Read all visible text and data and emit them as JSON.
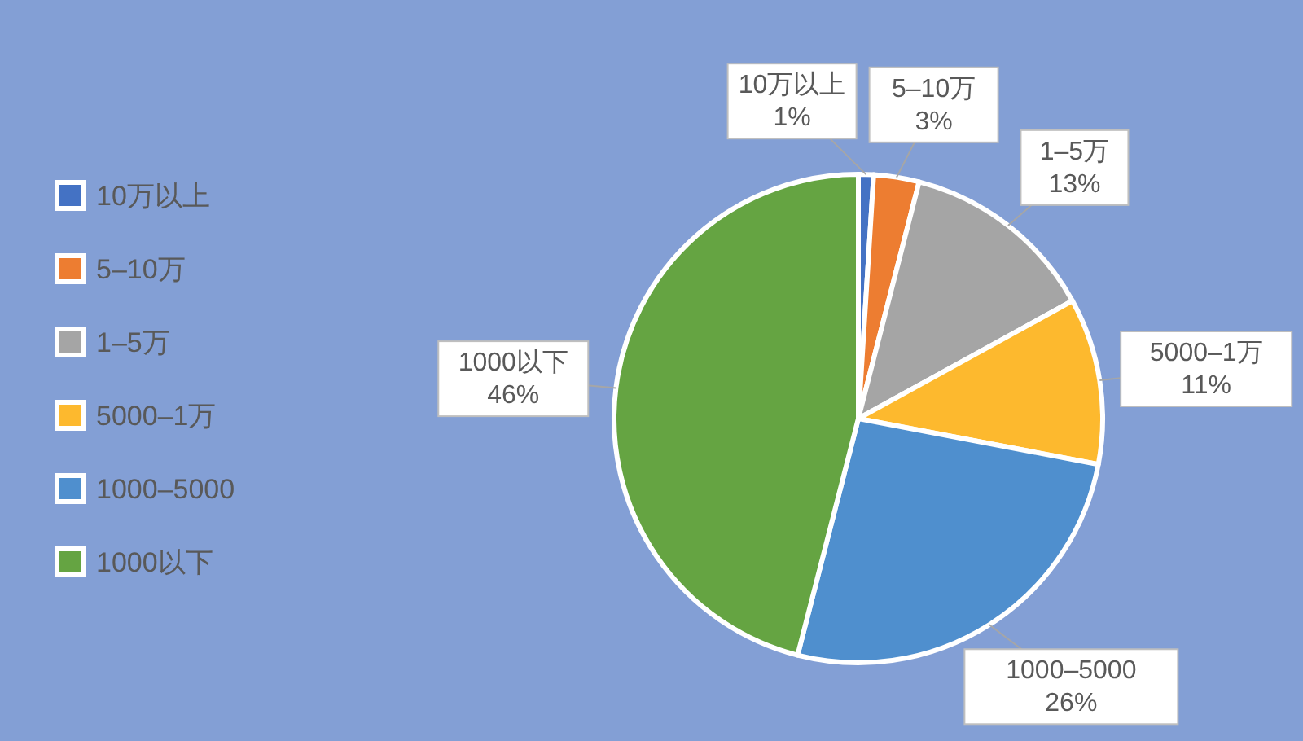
{
  "chart_data": {
    "type": "pie",
    "categories": [
      "10万以上",
      "5–10万",
      "1–5万",
      "5000–1万",
      "1000–5000",
      "1000以下"
    ],
    "values": [
      1,
      3,
      13,
      11,
      26,
      46
    ],
    "colors": [
      "#4472c4",
      "#ed7d31",
      "#a5a5a5",
      "#fdb92e",
      "#4f8fce",
      "#65a442"
    ],
    "value_labels": [
      "1%",
      "3%",
      "13%",
      "11%",
      "26%",
      "46%"
    ],
    "legend": "left"
  }
}
